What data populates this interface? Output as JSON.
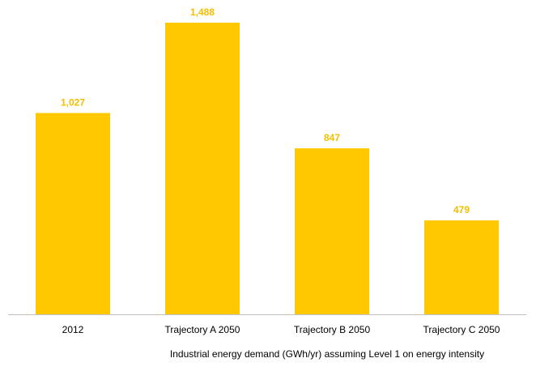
{
  "chart_data": {
    "type": "bar",
    "categories": [
      "2012",
      "Trajectory A 2050",
      "Trajectory B 2050",
      "Trajectory C 2050"
    ],
    "values": [
      1027,
      1488,
      847,
      479
    ],
    "value_labels": [
      "1,027",
      "1,488",
      "847",
      "479"
    ],
    "title": "",
    "xlabel": "Industrial energy demand (GWh/yr) assuming Level 1 on energy intensity",
    "ylabel": "",
    "ylim": [
      0,
      1488
    ],
    "grid": false,
    "legend": "none",
    "colors": {
      "bar": "#FFC800",
      "value_label": "#F5BE00",
      "axis": "#BFBFBF"
    }
  }
}
